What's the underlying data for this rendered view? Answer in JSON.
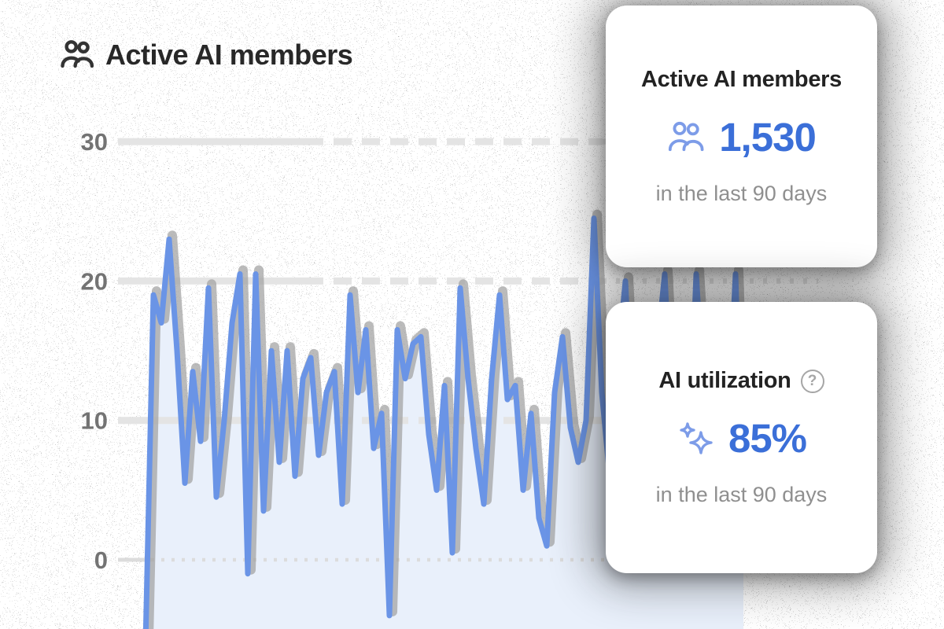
{
  "header": {
    "title": "Active AI members",
    "icon": "users-icon"
  },
  "chart_data": {
    "type": "area",
    "title": "Active AI members",
    "xlabel": "",
    "ylabel": "",
    "x_description": "daily active AI members over the last 90 days (no x tick labels shown)",
    "y_ticks": [
      30,
      20,
      10,
      0
    ],
    "ylim": [
      0,
      30
    ],
    "grid": "horizontal light-gray lines: solid near axis then dashed then dotted; zero baseline dotted",
    "legend": "none",
    "values": [
      -6,
      19,
      17,
      23,
      15,
      5.5,
      13.5,
      8.5,
      19.5,
      4.5,
      10,
      17,
      20.5,
      -1,
      20.5,
      3.5,
      15,
      7,
      15,
      6,
      13,
      14.5,
      7.5,
      12,
      13.5,
      4,
      19,
      12,
      16.5,
      8,
      10.5,
      -4,
      16.5,
      13,
      15.5,
      16,
      9,
      5,
      12.5,
      0.5,
      19.5,
      13,
      8,
      4,
      13,
      19,
      11.5,
      12.5,
      5,
      10.5,
      3,
      1,
      12,
      16,
      9.5,
      7,
      10,
      24.5,
      12,
      6,
      14,
      20,
      8,
      12,
      5,
      15,
      20.5,
      9,
      13,
      6,
      20.5,
      11,
      7,
      13,
      9,
      20.5,
      2
    ]
  },
  "cards": [
    {
      "title": "Active AI members",
      "icon": "users-icon",
      "value": "1,530",
      "subtitle": "in the last 90 days"
    },
    {
      "title": "AI utilization",
      "icon": "sparkles-icon",
      "help_icon": "help-circle-icon",
      "help_glyph": "?",
      "value": "85%",
      "subtitle": "in the last 90 days"
    }
  ],
  "colors": {
    "accent_blue": "#3b6fd8",
    "icon_blue": "#7d9ce8",
    "line_blue": "#6a94e6",
    "line_shadow": "#a1a1a1",
    "area_fill": "#e9f0fb",
    "grid_gray": "#e4e4e4",
    "zero_dot_gray": "#dcdcdc",
    "axis_label_gray": "#737373",
    "title_dark": "#282828",
    "subtitle_gray": "#8f8f8f"
  }
}
